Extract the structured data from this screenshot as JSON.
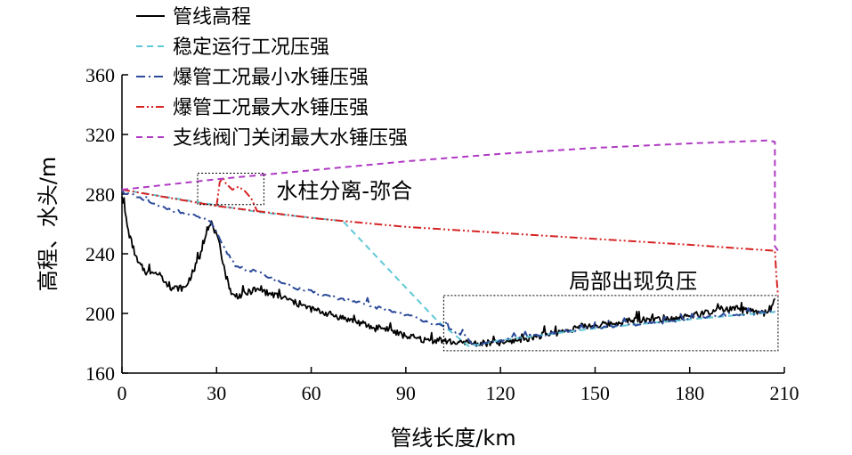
{
  "chart_data": {
    "type": "line",
    "xlabel": "管线长度/km",
    "ylabel": "高程、水头/m",
    "xlim": [
      0,
      210
    ],
    "ylim": [
      160,
      360
    ],
    "xticks": [
      0,
      30,
      60,
      90,
      120,
      150,
      180,
      210
    ],
    "yticks": [
      160,
      200,
      240,
      280,
      320,
      360
    ],
    "grid": false,
    "legend_position": "top-left",
    "annotations": [
      {
        "text": "水柱分离-弥合",
        "box_x": [
          24,
          45
        ],
        "box_y": [
          273,
          294
        ]
      },
      {
        "text": "局部出现负压",
        "box_x": [
          102,
          208
        ],
        "box_y": [
          175,
          212
        ]
      }
    ],
    "series": [
      {
        "name": "管线高程",
        "color": "#000000",
        "style": "solid",
        "x": [
          0,
          2,
          5,
          8,
          10,
          13,
          16,
          20,
          23,
          25,
          27,
          29,
          31,
          33,
          35,
          38,
          42,
          47,
          52,
          56,
          60,
          65,
          70,
          75,
          80,
          84,
          88,
          92,
          96,
          100,
          104,
          108,
          112,
          116,
          120,
          125,
          130,
          135,
          140,
          145,
          150,
          155,
          160,
          165,
          170,
          175,
          180,
          185,
          190,
          195,
          200,
          205,
          207
        ],
        "y": [
          280,
          255,
          234,
          227,
          229,
          222,
          217,
          217,
          230,
          240,
          258,
          258,
          245,
          225,
          212,
          212,
          216,
          213,
          210,
          206,
          203,
          200,
          197,
          194,
          190,
          190,
          186,
          184,
          182,
          182,
          181,
          180,
          180,
          180,
          180,
          182,
          184,
          186,
          188,
          191,
          192,
          193,
          195,
          196,
          196,
          197,
          198,
          200,
          202,
          203,
          201,
          200,
          210
        ]
      },
      {
        "name": "稳定运行工况压强",
        "color": "#5ec8d6",
        "style": "dashed",
        "x": [
          0,
          20,
          43,
          70,
          100,
          110,
          120,
          150,
          180,
          207
        ],
        "y": [
          283,
          276,
          268,
          262,
          195,
          178,
          182,
          190,
          196,
          201
        ]
      },
      {
        "name": "爆管工况最小水锤压强",
        "color": "#2c4a9a",
        "style": "dashdot",
        "x": [
          0,
          10,
          20,
          28,
          32,
          36,
          45,
          55,
          65,
          75,
          85,
          95,
          103,
          108,
          112,
          120,
          130,
          140,
          150,
          160,
          170,
          180,
          190,
          200,
          207
        ],
        "y": [
          282,
          273,
          267,
          262,
          245,
          232,
          226,
          217,
          212,
          207,
          202,
          196,
          190,
          186,
          178,
          182,
          185,
          188,
          190,
          192,
          194,
          196,
          199,
          200,
          201
        ]
      },
      {
        "name": "爆管工况最大水锤压强",
        "color": "#d62424",
        "style": "dashdotdot",
        "x": [
          0,
          30,
          60,
          90,
          120,
          150,
          180,
          200,
          207,
          207.5,
          208
        ],
        "y": [
          283,
          272,
          264,
          258,
          254,
          250,
          246,
          243,
          242,
          225,
          212
        ],
        "spike_x": [
          30,
          31,
          32,
          33,
          35,
          37,
          39,
          41,
          43
        ],
        "spike_y": [
          272,
          288,
          291,
          287,
          283,
          285,
          282,
          277,
          268
        ]
      },
      {
        "name": "支线阀门关闭最大水锤压强",
        "color": "#b03ac4",
        "style": "dashed",
        "x": [
          0,
          30,
          60,
          90,
          120,
          150,
          180,
          205,
          207,
          207,
          208
        ],
        "y": [
          283,
          290,
          296,
          302,
          307,
          311,
          314,
          316,
          315,
          245,
          242
        ]
      }
    ]
  }
}
